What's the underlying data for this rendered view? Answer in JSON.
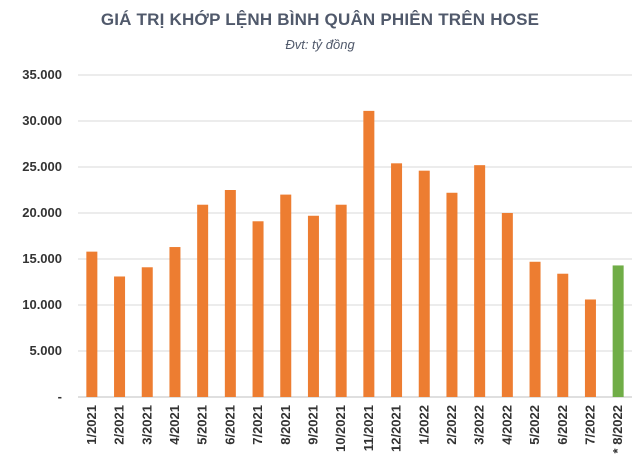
{
  "chart_data": {
    "type": "bar",
    "title": "GIÁ TRỊ KHỚP LỆNH BÌNH QUÂN PHIÊN TRÊN HOSE",
    "subtitle": "Đvt: tỷ đồng",
    "categories": [
      "1/2021",
      "2/2021",
      "3/2021",
      "4/2021",
      "5/2021",
      "6/2021",
      "7/2021",
      "8/2021",
      "9/2021",
      "10/2021",
      "11/2021",
      "12/2021",
      "1/2022",
      "2/2022",
      "3/2022",
      "4/2022",
      "5/2022",
      "6/2022",
      "7/2022",
      "* 8/2022"
    ],
    "values": [
      15800,
      13100,
      14100,
      16300,
      20900,
      22500,
      19100,
      22000,
      19700,
      20900,
      31100,
      25400,
      24600,
      22200,
      25200,
      20000,
      14700,
      13400,
      10600,
      14300
    ],
    "yticks": [
      "-",
      "5.000",
      "10.000",
      "15.000",
      "20.000",
      "25.000",
      "30.000",
      "35.000"
    ],
    "ylim": [
      0,
      35000
    ],
    "grid": true,
    "colors": {
      "default": "#ED7D31",
      "highlight": "#70AD47",
      "grid": "#d9d9d9",
      "axis": "#bfbfbf"
    },
    "highlight_index": 19
  }
}
